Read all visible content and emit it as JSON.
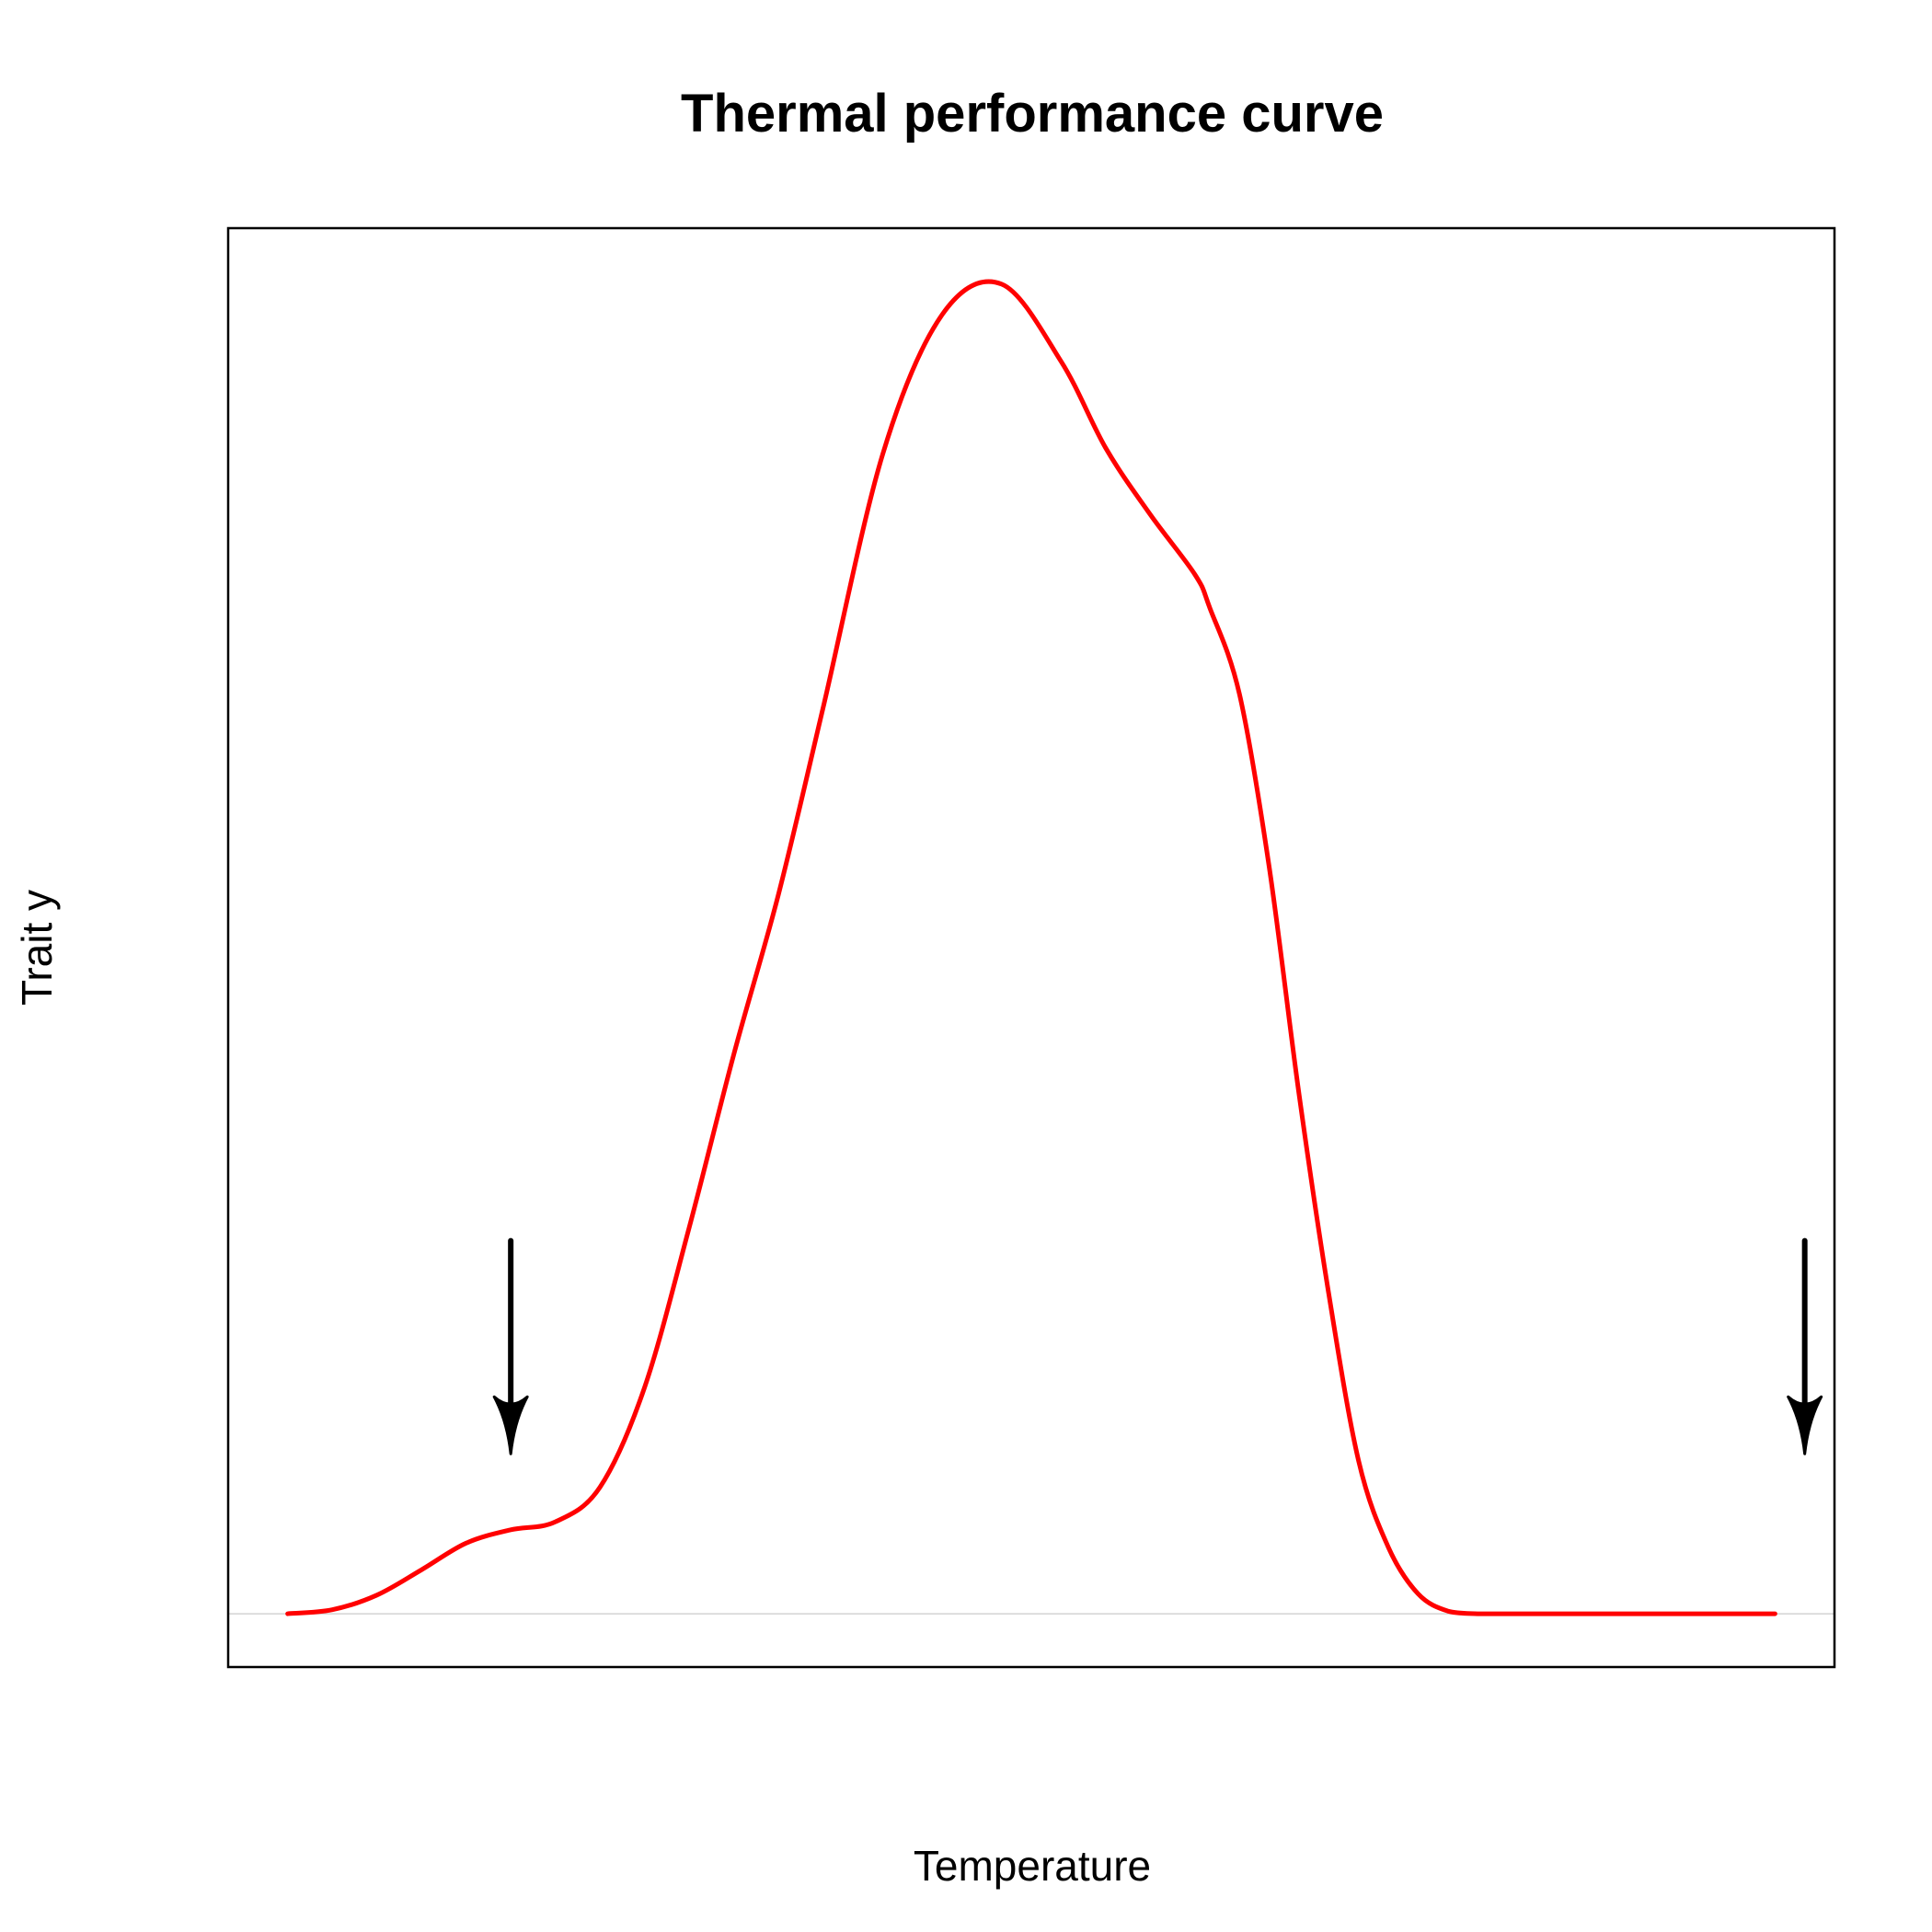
{
  "chart_data": {
    "type": "line",
    "title": "Thermal performance curve",
    "xlabel": "Temperature",
    "ylabel": "Trait y",
    "xlim": [
      -0.04,
      1.04
    ],
    "ylim": [
      -0.04,
      1.04
    ],
    "show_tick_labels": false,
    "grid": false,
    "baseline": 0,
    "series": [
      {
        "color": "#ff0000",
        "x": [
          0.0,
          0.03,
          0.06,
          0.09,
          0.12,
          0.15,
          0.18,
          0.21,
          0.24,
          0.27,
          0.3,
          0.33,
          0.36,
          0.4,
          0.44,
          0.48,
          0.52,
          0.55,
          0.58,
          0.61,
          0.62,
          0.64,
          0.66,
          0.68,
          0.7,
          0.72,
          0.74,
          0.76,
          0.78,
          0.8,
          0.82,
          0.84,
          0.86,
          0.88,
          0.9,
          0.92,
          0.94,
          0.96,
          0.98,
          1.0
        ],
        "y": [
          0.0,
          0.003,
          0.014,
          0.033,
          0.053,
          0.063,
          0.069,
          0.095,
          0.17,
          0.29,
          0.42,
          0.54,
          0.68,
          0.87,
          0.975,
          0.998,
          0.94,
          0.875,
          0.825,
          0.78,
          0.755,
          0.69,
          0.56,
          0.39,
          0.24,
          0.115,
          0.05,
          0.015,
          0.002,
          0.0,
          0.0,
          0.0,
          0.0,
          0.0,
          0.0,
          0.0,
          0.0,
          0.0,
          0.0,
          0.0
        ]
      }
    ],
    "annotations": [
      {
        "type": "arrow",
        "x": 0.15,
        "y_start": 0.28,
        "y_end": 0.12,
        "color": "#000000"
      },
      {
        "type": "arrow",
        "x": 1.02,
        "y_start": 0.28,
        "y_end": 0.12,
        "color": "#000000"
      }
    ],
    "colors": {
      "curve": "#ff0000",
      "baseline": "#d3d3d3",
      "frame": "#000000",
      "arrow": "#000000"
    }
  }
}
